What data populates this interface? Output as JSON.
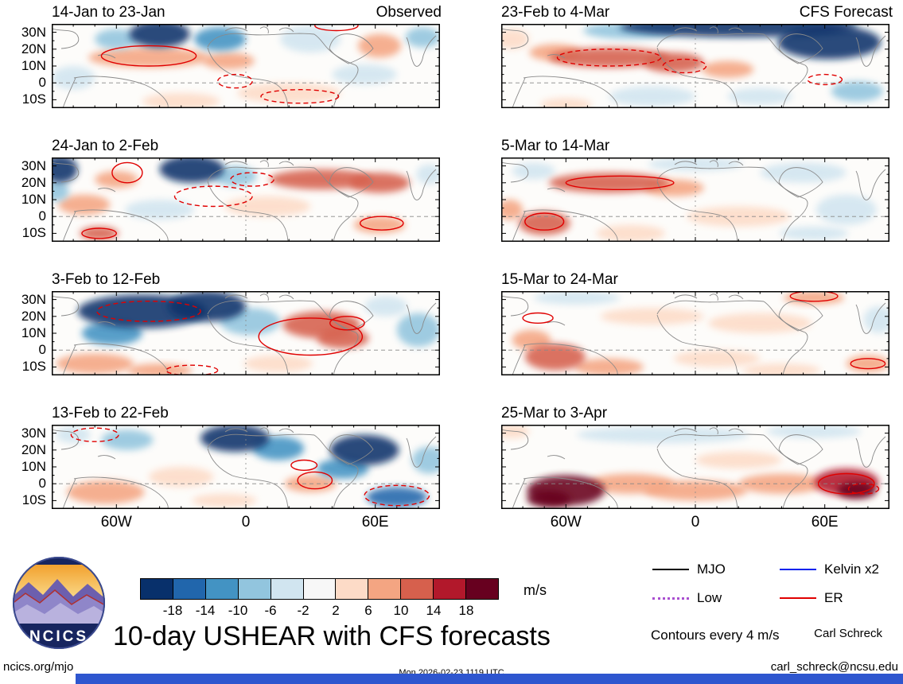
{
  "figure": {
    "title": "10-day USHEAR with CFS forecasts",
    "credit_name": "Carl Schreck",
    "credit_email": "carl_schreck@ncsu.edu",
    "footer_left": "ncics.org/mjo",
    "footer_center": "Mon 2026-02-23 1119 UTC",
    "logo_text": "NCICS"
  },
  "legend": {
    "items": [
      {
        "label": "MJO",
        "color": "#000000",
        "dash": "solid"
      },
      {
        "label": "Kelvin x2",
        "color": "#0022ee",
        "dash": "solid"
      },
      {
        "label": "Low",
        "color": "#a94fd0",
        "dash": "dotted"
      },
      {
        "label": "ER",
        "color": "#e00000",
        "dash": "solid"
      }
    ],
    "note": "Contours every 4 m/s"
  },
  "colorbar": {
    "unit": "m/s",
    "levels": [
      -18,
      -14,
      -10,
      -6,
      -2,
      2,
      6,
      10,
      14,
      18
    ],
    "colors": [
      "#08306b",
      "#2166ac",
      "#4393c3",
      "#92c5de",
      "#d1e5f0",
      "#f7f7f7",
      "#fddbc7",
      "#f4a582",
      "#d6604d",
      "#b2182b",
      "#67001f"
    ]
  },
  "chart_data": {
    "type": "heatmap",
    "title": "10-day USHEAR with CFS forecasts",
    "units": "m/s",
    "contour_interval_note": "Contours every 4 m/s",
    "x_ticks": [
      "60W",
      "0",
      "60E"
    ],
    "x_tick_lons": [
      -60,
      0,
      60
    ],
    "y_ticks": [
      "30N",
      "20N",
      "10N",
      "0",
      "10S"
    ],
    "y_tick_lats": [
      30,
      20,
      10,
      0,
      -10
    ],
    "lon_range": [
      -90,
      90
    ],
    "lat_range": [
      -15,
      35
    ],
    "anomaly_format": [
      "lon",
      "lat",
      "half_width_deg",
      "half_height_deg",
      "value_mps"
    ],
    "contour_format": [
      "lon",
      "lat",
      "half_width_deg",
      "half_height_deg",
      "line_style"
    ],
    "panels": [
      {
        "label": "14-Jan to 23-Jan",
        "corner": "Observed",
        "column": "observed",
        "anomalies": [
          [
            -40,
            29,
            14,
            8,
            -20
          ],
          [
            -60,
            26,
            10,
            6,
            -10
          ],
          [
            -12,
            26,
            12,
            7,
            -12
          ],
          [
            -45,
            15,
            28,
            6,
            8
          ],
          [
            -8,
            13,
            12,
            5,
            6
          ],
          [
            -80,
            3,
            10,
            7,
            -4
          ],
          [
            30,
            26,
            14,
            8,
            -4
          ],
          [
            62,
            22,
            10,
            7,
            8
          ],
          [
            82,
            27,
            8,
            6,
            -8
          ],
          [
            20,
            -6,
            24,
            6,
            4
          ],
          [
            -30,
            -11,
            18,
            5,
            4
          ],
          [
            55,
            5,
            15,
            6,
            -4
          ]
        ],
        "contours": [
          [
            -45,
            16,
            22,
            6,
            "solid"
          ],
          [
            -5,
            1,
            8,
            4,
            "dashed"
          ],
          [
            25,
            -8,
            18,
            4,
            "dashed"
          ],
          [
            42,
            34,
            10,
            3,
            "solid"
          ]
        ]
      },
      {
        "label": "24-Jan to 2-Feb",
        "corner": "",
        "column": "observed",
        "anomalies": [
          [
            -86,
            28,
            8,
            8,
            -20
          ],
          [
            -88,
            15,
            6,
            6,
            -10
          ],
          [
            -25,
            28,
            15,
            8,
            -20
          ],
          [
            -5,
            24,
            10,
            6,
            -10
          ],
          [
            35,
            22,
            24,
            6,
            10
          ],
          [
            62,
            20,
            14,
            6,
            12
          ],
          [
            -60,
            22,
            10,
            5,
            6
          ],
          [
            -75,
            7,
            12,
            6,
            8
          ],
          [
            -40,
            4,
            16,
            6,
            -4
          ],
          [
            10,
            6,
            20,
            6,
            2
          ],
          [
            62,
            -5,
            12,
            5,
            8
          ],
          [
            -68,
            -10,
            9,
            4,
            10
          ],
          [
            85,
            25,
            6,
            6,
            -6
          ]
        ],
        "contours": [
          [
            -55,
            26,
            7,
            6,
            "solid"
          ],
          [
            -15,
            12,
            18,
            6,
            "dashed"
          ],
          [
            3,
            22,
            10,
            4,
            "dashed"
          ],
          [
            -68,
            -10,
            8,
            3,
            "solid"
          ],
          [
            63,
            -4,
            10,
            4,
            "solid"
          ]
        ]
      },
      {
        "label": "3-Feb to 12-Feb",
        "corner": "",
        "column": "observed",
        "anomalies": [
          [
            -48,
            23,
            30,
            10,
            -20
          ],
          [
            -18,
            26,
            18,
            9,
            -20
          ],
          [
            -62,
            10,
            14,
            7,
            -12
          ],
          [
            2,
            17,
            14,
            8,
            -10
          ],
          [
            35,
            15,
            18,
            8,
            10
          ],
          [
            45,
            7,
            12,
            6,
            12
          ],
          [
            -70,
            -8,
            18,
            6,
            6
          ],
          [
            -40,
            -12,
            15,
            4,
            6
          ],
          [
            80,
            12,
            10,
            10,
            -8
          ],
          [
            65,
            26,
            10,
            6,
            -6
          ],
          [
            15,
            -8,
            16,
            5,
            2
          ]
        ],
        "contours": [
          [
            -45,
            23,
            24,
            6,
            "dashed"
          ],
          [
            30,
            8,
            24,
            11,
            "solid"
          ],
          [
            47,
            16,
            8,
            4,
            "solid"
          ],
          [
            -25,
            -12,
            12,
            3,
            "dashed"
          ]
        ]
      },
      {
        "label": "13-Feb to 22-Feb",
        "corner": "",
        "column": "observed",
        "anomalies": [
          [
            -5,
            27,
            16,
            8,
            -20
          ],
          [
            15,
            21,
            12,
            7,
            -12
          ],
          [
            55,
            20,
            16,
            9,
            -20
          ],
          [
            45,
            9,
            12,
            6,
            -12
          ],
          [
            -55,
            26,
            12,
            6,
            -8
          ],
          [
            -80,
            29,
            8,
            5,
            -4
          ],
          [
            -65,
            -5,
            18,
            7,
            6
          ],
          [
            -30,
            4,
            15,
            6,
            4
          ],
          [
            30,
            0,
            12,
            5,
            8
          ],
          [
            70,
            -8,
            14,
            6,
            -16
          ],
          [
            85,
            14,
            8,
            8,
            -8
          ],
          [
            -10,
            -10,
            15,
            4,
            2
          ]
        ],
        "contours": [
          [
            -70,
            29,
            11,
            4,
            "dashed"
          ],
          [
            32,
            2,
            8,
            5,
            "solid"
          ],
          [
            70,
            -7,
            15,
            6,
            "dashed"
          ],
          [
            27,
            11,
            6,
            3,
            "solid"
          ]
        ]
      },
      {
        "label": "23-Feb to 4-Mar",
        "corner": "CFS Forecast",
        "column": "forecast",
        "anomalies": [
          [
            20,
            33,
            55,
            6,
            -20
          ],
          [
            62,
            24,
            24,
            10,
            -20
          ],
          [
            -30,
            31,
            22,
            5,
            -10
          ],
          [
            -85,
            26,
            8,
            6,
            4
          ],
          [
            -40,
            15,
            28,
            6,
            12
          ],
          [
            -10,
            12,
            14,
            6,
            10
          ],
          [
            -65,
            18,
            12,
            5,
            8
          ],
          [
            15,
            8,
            12,
            5,
            6
          ],
          [
            -20,
            -8,
            20,
            6,
            -6
          ],
          [
            30,
            -8,
            15,
            5,
            -4
          ],
          [
            75,
            -5,
            12,
            6,
            -8
          ],
          [
            -60,
            -13,
            12,
            4,
            2
          ]
        ],
        "contours": [
          [
            -40,
            15,
            24,
            5,
            "dashed"
          ],
          [
            -5,
            10,
            10,
            4,
            "dashed"
          ],
          [
            60,
            2,
            8,
            3,
            "dashed"
          ]
        ]
      },
      {
        "label": "5-Mar to 14-Mar",
        "corner": "",
        "column": "forecast",
        "anomalies": [
          [
            -40,
            20,
            28,
            6,
            10
          ],
          [
            -10,
            17,
            14,
            5,
            8
          ],
          [
            -75,
            27,
            10,
            5,
            -6
          ],
          [
            0,
            31,
            22,
            4,
            -4
          ],
          [
            50,
            26,
            20,
            6,
            -4
          ],
          [
            -70,
            -4,
            12,
            7,
            12
          ],
          [
            -86,
            4,
            6,
            6,
            8
          ],
          [
            -30,
            -10,
            16,
            5,
            4
          ],
          [
            20,
            0,
            24,
            6,
            2
          ],
          [
            70,
            4,
            14,
            9,
            -4
          ],
          [
            55,
            -10,
            16,
            4,
            -4
          ]
        ],
        "contours": [
          [
            -35,
            20,
            25,
            4,
            "solid"
          ],
          [
            -70,
            -3,
            9,
            5,
            "solid"
          ]
        ]
      },
      {
        "label": "15-Mar to 24-Mar",
        "corner": "",
        "column": "forecast",
        "anomalies": [
          [
            -65,
            -4,
            14,
            8,
            12
          ],
          [
            -76,
            6,
            9,
            6,
            8
          ],
          [
            -40,
            -10,
            16,
            5,
            6
          ],
          [
            -20,
            20,
            24,
            5,
            2
          ],
          [
            30,
            16,
            24,
            6,
            2
          ],
          [
            55,
            31,
            14,
            4,
            6
          ],
          [
            -55,
            31,
            20,
            4,
            -4
          ],
          [
            10,
            -5,
            20,
            5,
            2
          ],
          [
            80,
            -8,
            10,
            5,
            8
          ],
          [
            85,
            18,
            7,
            8,
            -4
          ],
          [
            40,
            -12,
            18,
            4,
            4
          ]
        ],
        "contours": [
          [
            -73,
            19,
            7,
            3,
            "solid"
          ],
          [
            55,
            32,
            11,
            3,
            "solid"
          ],
          [
            80,
            -8,
            8,
            3,
            "solid"
          ]
        ]
      },
      {
        "label": "25-Mar to 3-Apr",
        "corner": "",
        "column": "forecast",
        "anomalies": [
          [
            -60,
            -4,
            18,
            9,
            18
          ],
          [
            -68,
            -9,
            10,
            5,
            20
          ],
          [
            -30,
            0,
            20,
            6,
            8
          ],
          [
            0,
            -4,
            24,
            6,
            6
          ],
          [
            40,
            0,
            20,
            6,
            8
          ],
          [
            70,
            1,
            15,
            8,
            16
          ],
          [
            75,
            -4,
            9,
            5,
            20
          ],
          [
            -15,
            29,
            40,
            5,
            -4
          ],
          [
            55,
            31,
            22,
            4,
            -4
          ],
          [
            -85,
            31,
            8,
            4,
            2
          ],
          [
            20,
            14,
            20,
            5,
            2
          ]
        ],
        "contours": [
          [
            70,
            0,
            13,
            6,
            "solid"
          ],
          [
            78,
            -3,
            7,
            3,
            "dashed"
          ]
        ]
      }
    ]
  }
}
